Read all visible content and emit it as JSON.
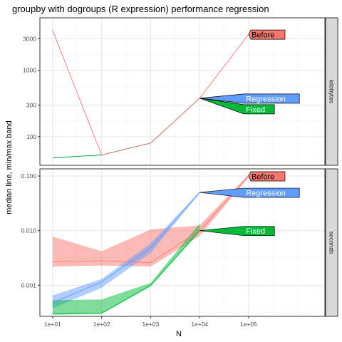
{
  "chart_data": {
    "type": "line",
    "title": "groupby with dogroups (R expression) performance regression",
    "xlabel": "N",
    "ylabel": "median line, min/max band",
    "x_scale": "log10",
    "x": [
      10,
      100,
      1000,
      10000,
      100000
    ],
    "x_ticks": [
      "1e+01",
      "1e+02",
      "1e+03",
      "1e+04",
      "1e+05"
    ],
    "xlim": [
      5.5,
      3600000
    ],
    "colors": {
      "Before": "#F8766D",
      "Regression": "#619CFF",
      "Fixed": "#00BA38"
    },
    "panels": [
      {
        "strip": "kilobytes",
        "y_scale": "log10",
        "ylim": [
          37,
          6200
        ],
        "y_ticks": [
          100,
          300,
          1000,
          3000
        ],
        "y_tick_labels": [
          "100",
          "300",
          "1000",
          "3000"
        ],
        "series": [
          {
            "name": "Before",
            "x": [
              10,
              100,
              1000,
              10000,
              100000
            ],
            "median": [
              4000,
              53,
              80,
              380,
              3500
            ]
          },
          {
            "name": "Regression",
            "x": [
              10,
              100,
              1000,
              10000
            ],
            "median": [
              48,
              53,
              80,
              380
            ]
          },
          {
            "name": "Fixed",
            "x": [
              10,
              100,
              1000,
              10000
            ],
            "median": [
              48,
              53,
              80,
              380
            ]
          }
        ],
        "direct_labels": [
          {
            "text": "Before",
            "series": "Before",
            "at_x": 100000,
            "at_y": 3500
          },
          {
            "text": "Regression",
            "series": "Regression",
            "at_x": 10000,
            "at_y": 380
          },
          {
            "text": "Fixed",
            "series": "Fixed",
            "at_x": 10000,
            "at_y": 380
          }
        ]
      },
      {
        "strip": "seconds",
        "y_scale": "log10",
        "ylim": [
          0.00027,
          0.135
        ],
        "y_ticks": [
          0.001,
          0.01,
          0.1
        ],
        "y_tick_labels": [
          "0.001",
          "0.010",
          "0.100"
        ],
        "series": [
          {
            "name": "Before",
            "x": [
              10,
              100,
              1000,
              10000,
              100000
            ],
            "median": [
              0.0027,
              0.0028,
              0.0026,
              0.01,
              0.1
            ],
            "min": [
              0.0022,
              0.0023,
              0.0022,
              0.008,
              0.095
            ],
            "max": [
              0.0078,
              0.0042,
              0.0105,
              0.0125,
              0.107
            ]
          },
          {
            "name": "Regression",
            "x": [
              10,
              100,
              1000,
              10000
            ],
            "median": [
              0.00048,
              0.00115,
              0.0048,
              0.05
            ],
            "min": [
              0.00038,
              0.0009,
              0.0039,
              0.048
            ],
            "max": [
              0.00065,
              0.0013,
              0.0058,
              0.052
            ]
          },
          {
            "name": "Fixed",
            "x": [
              10,
              100,
              1000,
              10000
            ],
            "median": [
              0.0003,
              0.00031,
              0.001,
              0.01
            ],
            "min": [
              0.00029,
              0.0003,
              0.00095,
              0.0095
            ],
            "max": [
              0.00053,
              0.00055,
              0.0011,
              0.0135
            ]
          }
        ],
        "direct_labels": [
          {
            "text": "Before",
            "series": "Before",
            "at_x": 100000,
            "at_y": 0.1
          },
          {
            "text": "Regression",
            "series": "Regression",
            "at_x": 10000,
            "at_y": 0.05
          },
          {
            "text": "Fixed",
            "series": "Fixed",
            "at_x": 10000,
            "at_y": 0.01
          }
        ]
      }
    ],
    "grid": true,
    "legend": "none (direct labels)"
  }
}
